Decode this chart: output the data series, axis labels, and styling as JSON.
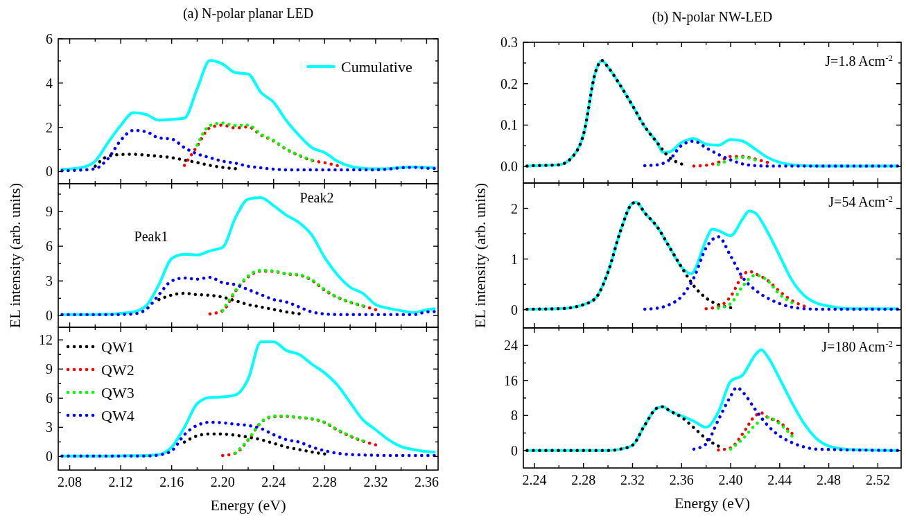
{
  "chart_data": [
    {
      "type": "line",
      "title": "(a) N-polar planar LED",
      "x": [
        2.074,
        2.08,
        2.09,
        2.1,
        2.11,
        2.12,
        2.13,
        2.14,
        2.15,
        2.16,
        2.17,
        2.18,
        2.19,
        2.2,
        2.21,
        2.22,
        2.23,
        2.24,
        2.25,
        2.26,
        2.27,
        2.28,
        2.29,
        2.3,
        2.31,
        2.32,
        2.33,
        2.34,
        2.35,
        2.36,
        2.366
      ],
      "xlim": [
        2.071,
        2.369
      ],
      "ylim": [
        -0.55,
        6
      ],
      "xticks": [
        {
          "value": 2.08,
          "label": null
        },
        {
          "value": 2.1,
          "label": null
        },
        {
          "value": 2.12,
          "label": null
        },
        {
          "value": 2.14,
          "label": null
        },
        {
          "value": 2.16,
          "label": null
        },
        {
          "value": 2.18,
          "label": null
        },
        {
          "value": 2.2,
          "label": null
        },
        {
          "value": 2.22,
          "label": null
        },
        {
          "value": 2.24,
          "label": null
        },
        {
          "value": 2.26,
          "label": null
        },
        {
          "value": 2.28,
          "label": null
        },
        {
          "value": 2.3,
          "label": null
        },
        {
          "value": 2.32,
          "label": null
        },
        {
          "value": 2.34,
          "label": null
        },
        {
          "value": 2.36,
          "label": null
        }
      ],
      "yticks": [
        0,
        {
          "value": 1,
          "label": null
        },
        2,
        {
          "value": 3,
          "label": null
        },
        4,
        {
          "value": 5,
          "label": null
        },
        6
      ],
      "tick_labels": "y",
      "legend": "top right",
      "marker": "none",
      "line_style": "dotted",
      "series": [
        {
          "name": "Cumulative",
          "color": "#00ffff",
          "line_style": "solid",
          "values": [
            0.1,
            0.12,
            0.19,
            0.47,
            1.3,
            2.08,
            2.66,
            2.58,
            2.32,
            2.36,
            2.41,
            3.74,
            5.02,
            4.86,
            4.47,
            4.41,
            3.58,
            3.13,
            2.3,
            1.63,
            1.08,
            0.86,
            0.47,
            0.24,
            0.15,
            0.12,
            0.13,
            0.19,
            0.21,
            0.19,
            0.18
          ]
        },
        {
          "color": "#000000",
          "values": [
            null,
            null,
            null,
            0.24,
            0.69,
            0.77,
            0.78,
            0.74,
            0.69,
            0.63,
            0.52,
            0.41,
            0.28,
            0.19,
            0.13,
            null,
            null,
            null,
            null,
            null,
            null,
            null,
            null,
            null,
            null,
            null,
            null,
            null,
            null,
            null,
            null
          ]
        },
        {
          "color": "#ff0000",
          "values": [
            null,
            null,
            null,
            null,
            null,
            null,
            null,
            null,
            null,
            null,
            0.28,
            1.15,
            1.98,
            2.1,
            1.97,
            2.02,
            1.65,
            1.38,
            1.0,
            0.72,
            0.5,
            0.4,
            0.27,
            null,
            null,
            null,
            null,
            null,
            null,
            null,
            null
          ]
        },
        {
          "color": "#00ff00",
          "values": [
            null,
            null,
            null,
            null,
            null,
            null,
            null,
            null,
            null,
            null,
            null,
            1.19,
            2.08,
            2.19,
            2.08,
            2.1,
            1.69,
            1.41,
            1.02,
            0.74,
            0.52,
            null,
            null,
            null,
            null,
            null,
            null,
            null,
            null,
            null,
            null
          ]
        },
        {
          "color": "#0000ff",
          "values": [
            0.04,
            0.05,
            0.07,
            0.13,
            0.58,
            1.41,
            1.86,
            1.8,
            1.52,
            1.47,
            1.08,
            0.8,
            0.63,
            0.47,
            0.38,
            0.24,
            0.17,
            0.11,
            0.08,
            0.08,
            0.08,
            0.08,
            0.08,
            0.08,
            0.08,
            0.08,
            0.11,
            0.17,
            0.19,
            0.15,
            0.14
          ]
        }
      ]
    },
    {
      "type": "line",
      "title": "(b) N-polar NW-LED",
      "xlim": [
        2.231,
        2.539
      ],
      "ylim": [
        -0.04,
        0.3
      ],
      "xticks": [
        {
          "value": 2.24,
          "label": null
        },
        {
          "value": 2.26,
          "label": null
        },
        {
          "value": 2.28,
          "label": null
        },
        {
          "value": 2.3,
          "label": null
        },
        {
          "value": 2.32,
          "label": null
        },
        {
          "value": 2.34,
          "label": null
        },
        {
          "value": 2.36,
          "label": null
        },
        {
          "value": 2.38,
          "label": null
        },
        {
          "value": 2.4,
          "label": null
        },
        {
          "value": 2.42,
          "label": null
        },
        {
          "value": 2.44,
          "label": null
        },
        {
          "value": 2.46,
          "label": null
        },
        {
          "value": 2.48,
          "label": null
        },
        {
          "value": 2.5,
          "label": null
        },
        {
          "value": 2.52,
          "label": null
        }
      ],
      "yticks": [
        {
          "value": 0,
          "label": "0.0"
        },
        {
          "value": 0.05,
          "label": null
        },
        {
          "value": 0.1,
          "label": "0.1"
        },
        {
          "value": 0.15,
          "label": null
        },
        {
          "value": 0.2,
          "label": "0.2"
        },
        {
          "value": 0.25,
          "label": null
        },
        {
          "value": 0.3,
          "label": "0.3"
        }
      ],
      "tick_labels": "y",
      "marker": "none",
      "line_style": "dotted",
      "annotations": [
        "J=1.8 Acm$^{-2}$"
      ],
      "series": [
        {
          "color": "#00ffff",
          "line_style": "solid",
          "x": [
            2.234,
            2.24,
            2.26,
            2.27,
            2.28,
            2.29,
            2.295,
            2.3,
            2.31,
            2.32,
            2.33,
            2.34,
            2.345,
            2.35,
            2.36,
            2.37,
            2.38,
            2.39,
            2.4,
            2.41,
            2.42,
            2.43,
            2.44,
            2.45,
            2.47,
            2.536
          ],
          "values": [
            0.001,
            0.002,
            0.004,
            0.02,
            0.077,
            0.23,
            0.256,
            0.24,
            0.196,
            0.147,
            0.096,
            0.058,
            0.034,
            0.035,
            0.058,
            0.067,
            0.054,
            0.051,
            0.065,
            0.061,
            0.042,
            0.022,
            0.01,
            0.004,
            0.001,
            0.001
          ]
        },
        {
          "color": "#000000",
          "x": [
            2.234,
            2.24,
            2.26,
            2.27,
            2.28,
            2.29,
            2.295,
            2.3,
            2.31,
            2.32,
            2.33,
            2.34,
            2.35,
            2.36
          ],
          "values": [
            0.001,
            0.002,
            0.004,
            0.02,
            0.077,
            0.23,
            0.256,
            0.24,
            0.196,
            0.147,
            0.096,
            0.058,
            0.022,
            0.006
          ]
        },
        {
          "color": "#ff0000",
          "x": [
            2.37,
            2.38,
            2.39,
            2.4,
            2.41,
            2.42,
            2.43
          ],
          "values": [
            0.001,
            0.003,
            0.01,
            0.024,
            0.024,
            0.018,
            0.01
          ]
        },
        {
          "color": "#00ff00",
          "x": [
            2.39,
            2.4,
            2.41,
            2.42
          ],
          "values": [
            0.005,
            0.016,
            0.022,
            0.016
          ]
        },
        {
          "color": "#0000ff",
          "x": [
            2.33,
            2.34,
            2.35,
            2.36,
            2.37,
            2.38,
            2.39,
            2.4,
            2.41,
            2.42,
            2.43,
            2.536
          ],
          "values": [
            0.002,
            0.004,
            0.016,
            0.051,
            0.061,
            0.045,
            0.029,
            0.016,
            0.006,
            0.002,
            0.001,
            0.001
          ]
        }
      ]
    },
    {
      "type": "line",
      "ylabel": "EL intensity (arb. units)",
      "annotations": [
        "Peak1",
        "Peak2"
      ],
      "x": [
        2.074,
        2.08,
        2.09,
        2.1,
        2.11,
        2.12,
        2.13,
        2.14,
        2.15,
        2.16,
        2.17,
        2.18,
        2.19,
        2.2,
        2.21,
        2.22,
        2.23,
        2.24,
        2.25,
        2.26,
        2.27,
        2.28,
        2.29,
        2.3,
        2.31,
        2.32,
        2.33,
        2.34,
        2.35,
        2.36,
        2.366
      ],
      "xlim": [
        2.071,
        2.369
      ],
      "ylim": [
        -1,
        11.4
      ],
      "xticks": [
        {
          "value": 2.08,
          "label": null
        },
        {
          "value": 2.1,
          "label": null
        },
        {
          "value": 2.12,
          "label": null
        },
        {
          "value": 2.14,
          "label": null
        },
        {
          "value": 2.16,
          "label": null
        },
        {
          "value": 2.18,
          "label": null
        },
        {
          "value": 2.2,
          "label": null
        },
        {
          "value": 2.22,
          "label": null
        },
        {
          "value": 2.24,
          "label": null
        },
        {
          "value": 2.26,
          "label": null
        },
        {
          "value": 2.28,
          "label": null
        },
        {
          "value": 2.3,
          "label": null
        },
        {
          "value": 2.32,
          "label": null
        },
        {
          "value": 2.34,
          "label": null
        },
        {
          "value": 2.36,
          "label": null
        }
      ],
      "yticks": [
        0,
        {
          "value": 1.5,
          "label": null
        },
        3,
        {
          "value": 4.5,
          "label": null
        },
        6,
        {
          "value": 7.5,
          "label": null
        },
        9,
        {
          "value": 10.5,
          "label": null
        }
      ],
      "tick_labels": "y",
      "marker": "none",
      "line_style": "dotted",
      "series": [
        {
          "color": "#00ffff",
          "line_style": "solid",
          "values": [
            0.1,
            0.1,
            0.1,
            0.1,
            0.12,
            0.2,
            0.32,
            0.86,
            2.68,
            4.93,
            5.3,
            5.25,
            5.6,
            5.9,
            8.46,
            10.07,
            10.2,
            9.5,
            8.68,
            8.04,
            6.96,
            5.03,
            3.54,
            2.46,
            1.93,
            0.96,
            0.64,
            0.43,
            0.28,
            0.5,
            0.6
          ]
        },
        {
          "color": "#000000",
          "values": [
            null,
            null,
            null,
            null,
            null,
            null,
            null,
            null,
            1.39,
            1.78,
            1.93,
            1.82,
            1.76,
            1.6,
            1.29,
            0.96,
            0.75,
            0.54,
            0.32,
            0.17,
            null,
            null,
            null,
            null,
            null,
            null,
            null,
            null,
            null,
            null,
            null
          ]
        },
        {
          "color": "#ff0000",
          "values": [
            null,
            null,
            null,
            null,
            null,
            null,
            null,
            null,
            null,
            null,
            null,
            null,
            0.15,
            0.43,
            2.1,
            3.35,
            3.85,
            3.82,
            3.6,
            3.5,
            3.05,
            2.2,
            1.58,
            1.15,
            0.84,
            0.52,
            null,
            null,
            null,
            null,
            null
          ]
        },
        {
          "color": "#00ff00",
          "values": [
            null,
            null,
            null,
            null,
            null,
            null,
            null,
            null,
            null,
            null,
            null,
            null,
            null,
            0.43,
            2.14,
            3.43,
            3.92,
            3.86,
            3.64,
            3.54,
            3.1,
            2.25,
            1.6,
            1.18,
            0.86,
            null,
            null,
            null,
            null,
            null,
            null
          ]
        },
        {
          "color": "#0000ff",
          "values": [
            0.1,
            0.1,
            0.1,
            0.1,
            0.1,
            0.1,
            0.15,
            0.54,
            1.82,
            3.0,
            3.26,
            3.15,
            3.32,
            2.85,
            2.68,
            2.25,
            1.82,
            1.39,
            1.18,
            0.75,
            0.32,
            0.15,
            0.1,
            0.1,
            0.1,
            0.1,
            0.1,
            0.1,
            0.1,
            0.32,
            0.35
          ]
        }
      ]
    },
    {
      "type": "line",
      "ylabel": "EL intensity (arb. units)",
      "xlim": [
        2.231,
        2.539
      ],
      "ylim": [
        -0.36,
        2.5
      ],
      "xticks": [
        {
          "value": 2.24,
          "label": null
        },
        {
          "value": 2.26,
          "label": null
        },
        {
          "value": 2.28,
          "label": null
        },
        {
          "value": 2.3,
          "label": null
        },
        {
          "value": 2.32,
          "label": null
        },
        {
          "value": 2.34,
          "label": null
        },
        {
          "value": 2.36,
          "label": null
        },
        {
          "value": 2.38,
          "label": null
        },
        {
          "value": 2.4,
          "label": null
        },
        {
          "value": 2.42,
          "label": null
        },
        {
          "value": 2.44,
          "label": null
        },
        {
          "value": 2.46,
          "label": null
        },
        {
          "value": 2.48,
          "label": null
        },
        {
          "value": 2.5,
          "label": null
        },
        {
          "value": 2.52,
          "label": null
        }
      ],
      "yticks": [
        0,
        {
          "value": 0.5,
          "label": null
        },
        1,
        {
          "value": 1.5,
          "label": null
        },
        2
      ],
      "tick_labels": "y",
      "marker": "none",
      "line_style": "dotted",
      "annotations": [
        "J=54 Acm$^{-2}$"
      ],
      "series": [
        {
          "color": "#00ffff",
          "line_style": "solid",
          "x": [
            2.234,
            2.26,
            2.27,
            2.28,
            2.29,
            2.3,
            2.31,
            2.32,
            2.323,
            2.33,
            2.34,
            2.35,
            2.36,
            2.368,
            2.37,
            2.38,
            2.385,
            2.39,
            2.4,
            2.41,
            2.415,
            2.42,
            2.43,
            2.44,
            2.45,
            2.46,
            2.47,
            2.48,
            2.49,
            2.5,
            2.536
          ],
          "values": [
            0.01,
            0.02,
            0.04,
            0.1,
            0.23,
            0.74,
            1.54,
            2.1,
            2.12,
            1.91,
            1.64,
            1.24,
            0.84,
            0.71,
            0.76,
            1.38,
            1.59,
            1.56,
            1.46,
            1.8,
            1.95,
            1.91,
            1.54,
            1.06,
            0.58,
            0.28,
            0.13,
            0.07,
            0.03,
            0.02,
            0.02
          ]
        },
        {
          "color": "#000000",
          "x": [
            2.234,
            2.26,
            2.27,
            2.28,
            2.29,
            2.3,
            2.31,
            2.32,
            2.323,
            2.33,
            2.34,
            2.35,
            2.36,
            2.37,
            2.38,
            2.39,
            2.4
          ],
          "values": [
            0.01,
            0.02,
            0.04,
            0.1,
            0.23,
            0.74,
            1.54,
            2.1,
            2.12,
            1.91,
            1.64,
            1.24,
            0.84,
            0.47,
            0.23,
            0.1,
            0.04
          ]
        },
        {
          "color": "#ff0000",
          "x": [
            2.38,
            2.39,
            2.4,
            2.41,
            2.415,
            2.42,
            2.43,
            2.44,
            2.45,
            2.46
          ],
          "values": [
            0.02,
            0.06,
            0.26,
            0.68,
            0.76,
            0.71,
            0.58,
            0.36,
            0.18,
            0.07
          ]
        },
        {
          "color": "#00ff00",
          "x": [
            2.39,
            2.4,
            2.41,
            2.42,
            2.43,
            2.44,
            2.45
          ],
          "values": [
            0.03,
            0.12,
            0.47,
            0.68,
            0.58,
            0.3,
            0.14
          ]
        },
        {
          "color": "#0000ff",
          "x": [
            2.33,
            2.34,
            2.35,
            2.36,
            2.37,
            2.38,
            2.39,
            2.4,
            2.41,
            2.42,
            2.43,
            2.44,
            2.45,
            2.46,
            2.47,
            2.536
          ],
          "values": [
            0.01,
            0.03,
            0.1,
            0.26,
            0.63,
            1.22,
            1.44,
            1.06,
            0.63,
            0.39,
            0.23,
            0.12,
            0.05,
            0.02,
            0.01,
            0.01
          ]
        }
      ]
    },
    {
      "type": "line",
      "xlabel": "Energy (eV)",
      "x": [
        2.074,
        2.08,
        2.09,
        2.1,
        2.11,
        2.12,
        2.13,
        2.14,
        2.15,
        2.16,
        2.17,
        2.18,
        2.19,
        2.2,
        2.21,
        2.22,
        2.23,
        2.24,
        2.25,
        2.26,
        2.27,
        2.28,
        2.29,
        2.3,
        2.31,
        2.32,
        2.33,
        2.34,
        2.35,
        2.36,
        2.366
      ],
      "xlim": [
        2.071,
        2.369
      ],
      "ylim": [
        -1.4,
        13.3
      ],
      "xticks": [
        {
          "value": 2.08,
          "label": "2.08"
        },
        {
          "value": 2.1,
          "label": null
        },
        {
          "value": 2.12,
          "label": "2.12"
        },
        {
          "value": 2.14,
          "label": null
        },
        {
          "value": 2.16,
          "label": "2.16"
        },
        {
          "value": 2.18,
          "label": null
        },
        {
          "value": 2.2,
          "label": "2.20"
        },
        {
          "value": 2.22,
          "label": null
        },
        {
          "value": 2.24,
          "label": "2.24"
        },
        {
          "value": 2.26,
          "label": null
        },
        {
          "value": 2.28,
          "label": "2.28"
        },
        {
          "value": 2.3,
          "label": null
        },
        {
          "value": 2.32,
          "label": "2.32"
        },
        {
          "value": 2.34,
          "label": null
        },
        {
          "value": 2.36,
          "label": "2.36"
        }
      ],
      "yticks": [
        0,
        {
          "value": 1.5,
          "label": null
        },
        3,
        {
          "value": 4.5,
          "label": null
        },
        6,
        {
          "value": 7.5,
          "label": null
        },
        9,
        {
          "value": 10.5,
          "label": null
        },
        12
      ],
      "legend": "top left",
      "marker": "none",
      "line_style": "dotted",
      "series": [
        {
          "color": "#00ffff",
          "line_style": "solid",
          "values": [
            0.05,
            0.05,
            0.05,
            0.05,
            0.05,
            0.06,
            0.08,
            0.1,
            0.2,
            0.97,
            3.0,
            5.43,
            6.07,
            6.12,
            6.33,
            7.98,
            11.8,
            11.8,
            10.9,
            10.5,
            9.5,
            8.6,
            7.35,
            5.56,
            3.78,
            2.76,
            1.73,
            1.02,
            0.71,
            0.51,
            0.45
          ]
        },
        {
          "name": "QW1",
          "color": "#000000",
          "values": [
            null,
            null,
            null,
            null,
            null,
            null,
            null,
            null,
            null,
            null,
            1.48,
            2.12,
            2.32,
            2.3,
            2.19,
            1.99,
            1.73,
            1.35,
            0.97,
            0.71,
            0.46,
            0.26,
            null,
            null,
            null,
            null,
            null,
            null,
            null,
            null,
            null
          ]
        },
        {
          "name": "QW2",
          "color": "#ff0000",
          "values": [
            null,
            null,
            null,
            null,
            null,
            null,
            null,
            null,
            null,
            null,
            null,
            null,
            null,
            0.1,
            0.33,
            1.7,
            3.48,
            4.1,
            4.12,
            4.0,
            3.85,
            3.48,
            2.72,
            2.08,
            1.58,
            1.2,
            null,
            null,
            null,
            null,
            null
          ]
        },
        {
          "name": "QW3",
          "color": "#00ff00",
          "values": [
            null,
            null,
            null,
            null,
            null,
            null,
            null,
            null,
            null,
            null,
            null,
            null,
            null,
            null,
            0.33,
            1.73,
            3.52,
            4.16,
            4.16,
            4.03,
            3.9,
            3.52,
            2.76,
            2.12,
            1.61,
            null,
            null,
            null,
            null,
            null,
            null
          ]
        },
        {
          "name": "QW4",
          "color": "#0000ff",
          "values": [
            0.05,
            0.05,
            0.05,
            0.05,
            0.05,
            0.05,
            0.05,
            0.05,
            0.15,
            0.59,
            2.24,
            3.21,
            3.52,
            3.47,
            3.32,
            3.19,
            2.88,
            2.24,
            1.73,
            1.48,
            0.97,
            0.59,
            0.33,
            0.2,
            0.15,
            0.12,
            0.1,
            0.1,
            0.1,
            0.1,
            0.1
          ]
        }
      ]
    },
    {
      "type": "line",
      "xlabel": "Energy (eV)",
      "xlim": [
        2.231,
        2.539
      ],
      "ylim": [
        -4,
        28
      ],
      "xticks": [
        {
          "value": 2.24,
          "label": "2.24"
        },
        {
          "value": 2.26,
          "label": null
        },
        {
          "value": 2.28,
          "label": "2.28"
        },
        {
          "value": 2.3,
          "label": null
        },
        {
          "value": 2.32,
          "label": "2.32"
        },
        {
          "value": 2.34,
          "label": null
        },
        {
          "value": 2.36,
          "label": "2.36"
        },
        {
          "value": 2.38,
          "label": null
        },
        {
          "value": 2.4,
          "label": "2.40"
        },
        {
          "value": 2.42,
          "label": null
        },
        {
          "value": 2.44,
          "label": "2.44"
        },
        {
          "value": 2.46,
          "label": null
        },
        {
          "value": 2.48,
          "label": "2.48"
        },
        {
          "value": 2.5,
          "label": null
        },
        {
          "value": 2.52,
          "label": "2.52"
        }
      ],
      "yticks": [
        0,
        {
          "value": 4,
          "label": null
        },
        8,
        {
          "value": 12,
          "label": null
        },
        16,
        {
          "value": 20,
          "label": null
        },
        24
      ],
      "marker": "none",
      "line_style": "dotted",
      "annotations": [
        "J=180 Acm$^{-2}$"
      ],
      "series": [
        {
          "color": "#00ffff",
          "line_style": "solid",
          "x": [
            2.234,
            2.3,
            2.31,
            2.32,
            2.33,
            2.34,
            2.345,
            2.35,
            2.36,
            2.37,
            2.38,
            2.39,
            2.4,
            2.41,
            2.42,
            2.425,
            2.43,
            2.44,
            2.45,
            2.46,
            2.47,
            2.48,
            2.49,
            2.5,
            2.536
          ],
          "values": [
            0,
            0,
            0.3,
            1.2,
            5.8,
            9.7,
            10,
            9.1,
            7.9,
            6.7,
            5.3,
            8.8,
            15.8,
            17.3,
            21.8,
            23,
            21.5,
            16.4,
            10.9,
            6.1,
            2.7,
            1.0,
            0.4,
            0.2,
            0
          ]
        },
        {
          "color": "#000000",
          "x": [
            2.234,
            2.3,
            2.31,
            2.32,
            2.33,
            2.34,
            2.345,
            2.35,
            2.36,
            2.37,
            2.38,
            2.39
          ],
          "values": [
            0,
            0,
            0.3,
            1.2,
            5.8,
            9.7,
            10,
            9.1,
            7.6,
            5.2,
            2.7,
            1.0
          ]
        },
        {
          "color": "#ff0000",
          "x": [
            2.39,
            2.4,
            2.41,
            2.42,
            2.425,
            2.43,
            2.44,
            2.45
          ],
          "values": [
            0.1,
            0.6,
            3.9,
            7.9,
            8.6,
            7.6,
            6.4,
            3.9
          ]
        },
        {
          "color": "#00ff00",
          "x": [
            2.4,
            2.41,
            2.42,
            2.43,
            2.44,
            2.45
          ],
          "values": [
            0.3,
            2.7,
            5.8,
            7.6,
            6.1,
            3.3
          ]
        },
        {
          "color": "#0000ff",
          "x": [
            2.37,
            2.38,
            2.39,
            2.4,
            2.405,
            2.41,
            2.42,
            2.43,
            2.44,
            2.45,
            2.46,
            2.47,
            2.536
          ],
          "values": [
            0.3,
            1.5,
            7.0,
            12.4,
            14.4,
            13.3,
            9.4,
            5.8,
            3.3,
            1.8,
            0.8,
            0.3,
            0
          ]
        }
      ]
    }
  ]
}
